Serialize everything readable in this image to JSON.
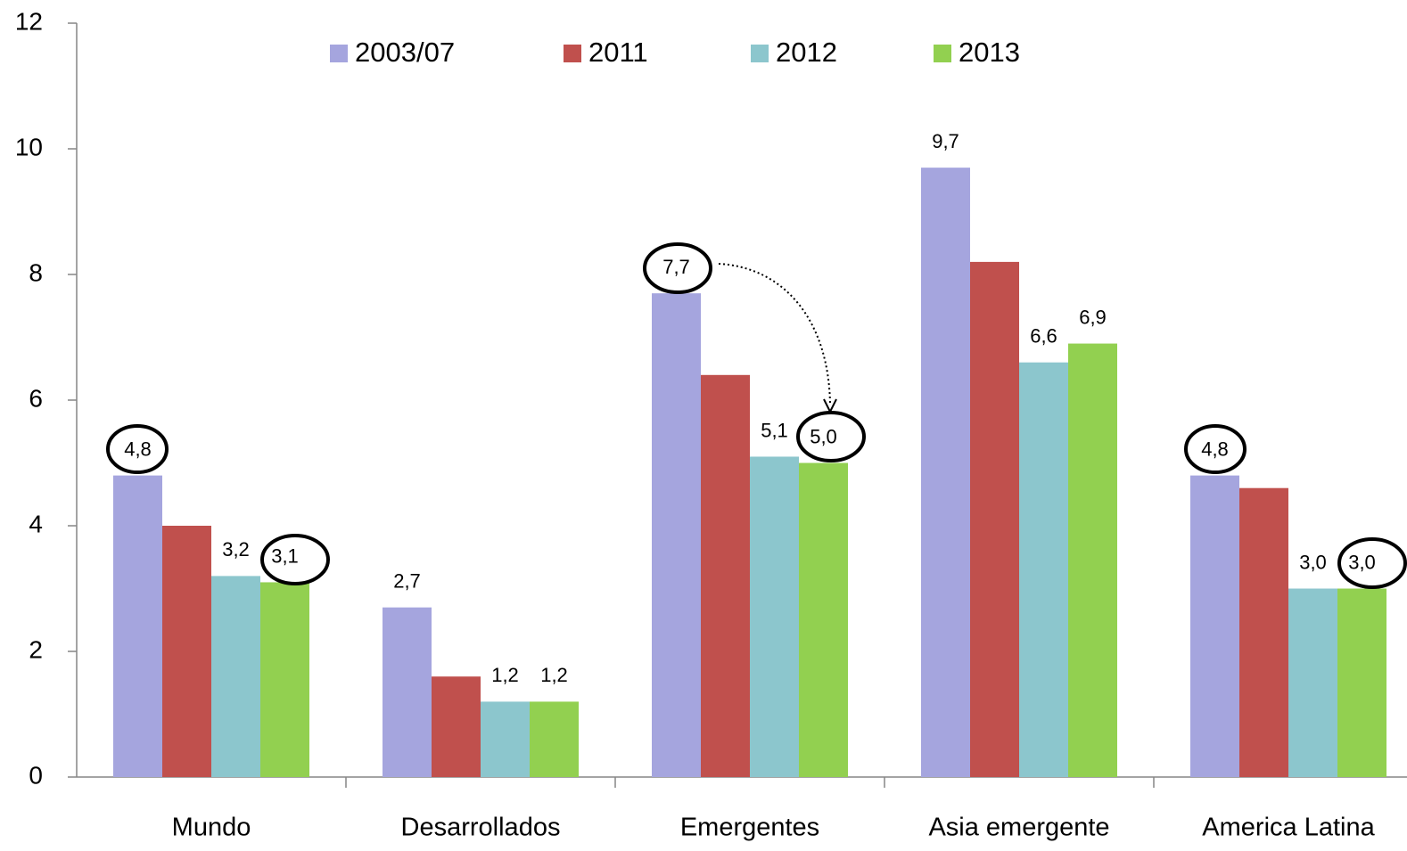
{
  "chart_data": {
    "type": "bar",
    "categories": [
      "Mundo",
      "Desarrollados",
      "Emergentes",
      "Asia emergente",
      "America Latina"
    ],
    "series": [
      {
        "name": "2003/07",
        "color": "#a5a5de",
        "values": [
          4.8,
          2.7,
          7.7,
          9.7,
          4.8
        ],
        "value_labels": [
          "4,8",
          "2,7",
          "7,7",
          "9,7",
          "4,8"
        ]
      },
      {
        "name": "2011",
        "color": "#c0504d",
        "values": [
          4.0,
          1.6,
          6.4,
          8.2,
          4.6
        ],
        "value_labels": [
          null,
          null,
          null,
          null,
          null
        ]
      },
      {
        "name": "2012",
        "color": "#8cc6cd",
        "values": [
          3.2,
          1.2,
          5.1,
          6.6,
          3.0
        ],
        "value_labels": [
          "3,2",
          "1,2",
          "5,1",
          "6,6",
          "3,0"
        ]
      },
      {
        "name": "2013",
        "color": "#92d050",
        "values": [
          3.1,
          1.2,
          5.0,
          6.9,
          3.0
        ],
        "value_labels": [
          "3,1",
          "1,2",
          "5,0",
          "6,9",
          "3,0"
        ]
      }
    ],
    "ylim": [
      0,
      12
    ],
    "yticks": [
      0,
      2,
      4,
      6,
      8,
      10,
      12
    ],
    "legend": "top"
  }
}
